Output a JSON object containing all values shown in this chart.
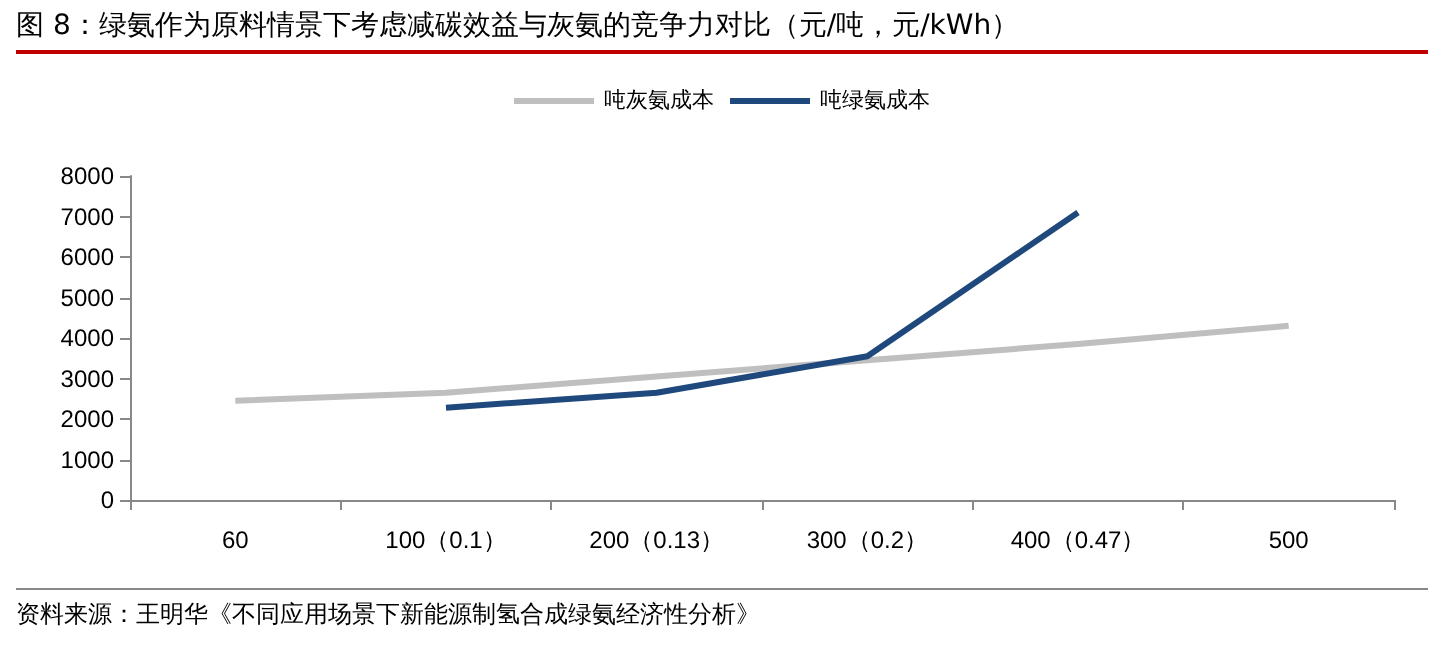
{
  "chart_data": {
    "type": "line",
    "title": "图 8：绿氨作为原料情景下考虑减碳效益与灰氨的竞争力对比（元/吨，元/kWh）",
    "annotations": [
      "资料来源：王明华《不同应用场景下新能源制氢合成绿氨经济性分析》"
    ],
    "categories": [
      "60",
      "100（0.1）",
      "200（0.13）",
      "300（0.2）",
      "400（0.47）",
      "500"
    ],
    "series": [
      {
        "name": "吨灰氨成本",
        "color": "#bfbfbf",
        "values": [
          2450,
          2650,
          3050,
          3450,
          3850,
          4300
        ]
      },
      {
        "name": "吨绿氨成本",
        "color": "#1f497d",
        "values": [
          null,
          2280,
          2650,
          3550,
          7100,
          null
        ]
      }
    ],
    "ylim": [
      0,
      8000
    ],
    "yticks": [
      0,
      1000,
      2000,
      3000,
      4000,
      5000,
      6000,
      7000,
      8000
    ],
    "grid": false,
    "legend": "top",
    "marker": "none",
    "line_style": "solid"
  }
}
